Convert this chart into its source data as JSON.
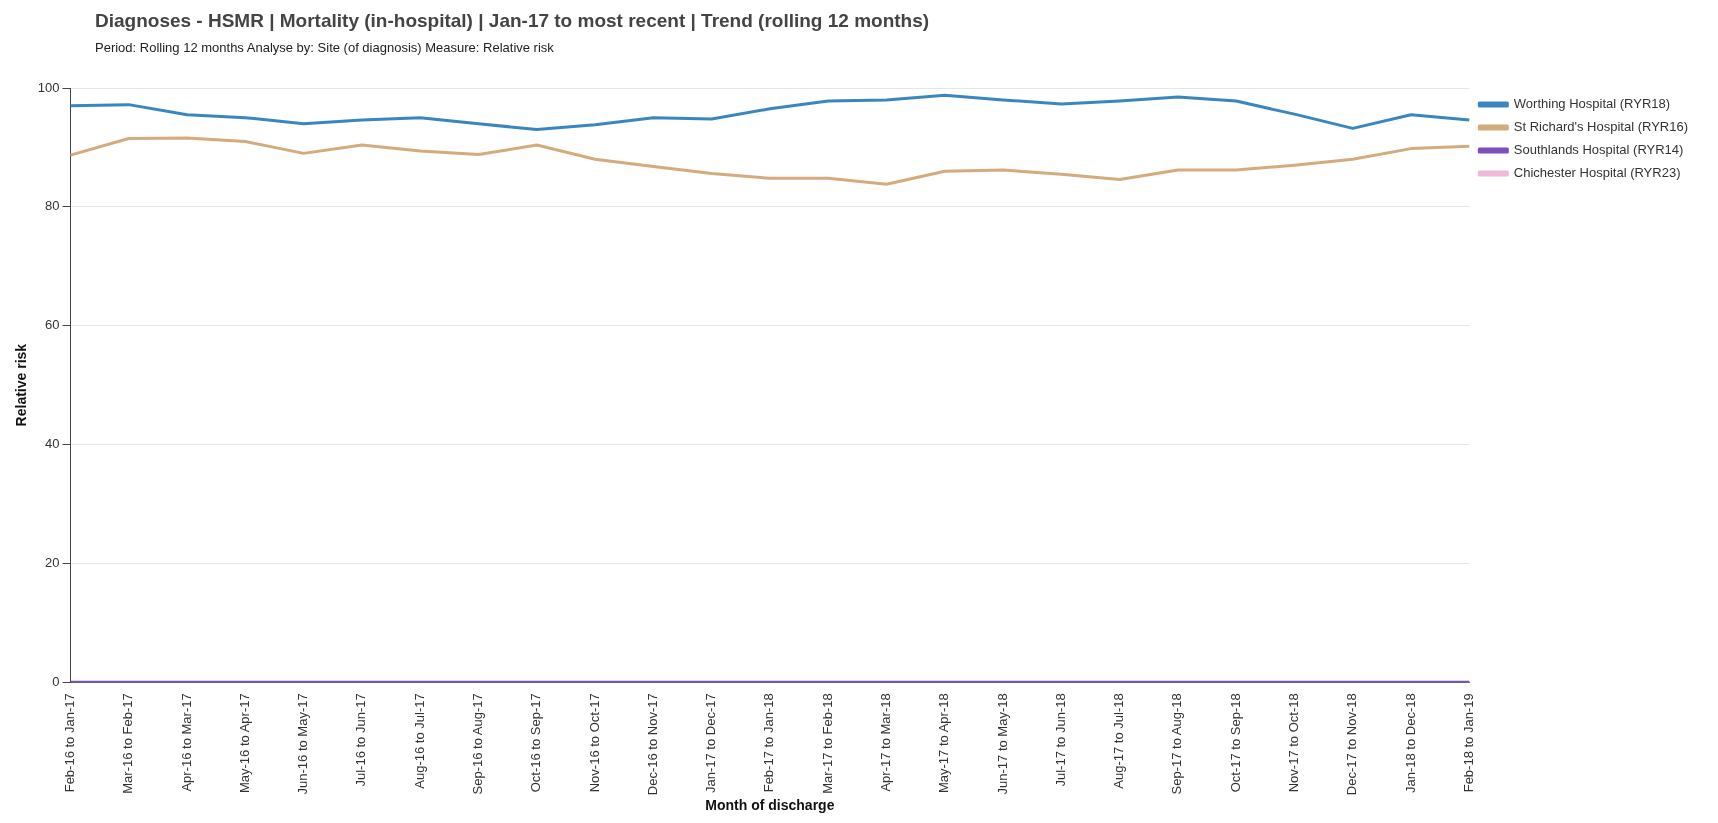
{
  "chart_data": {
    "type": "line",
    "title": "Diagnoses - HSMR | Mortality (in-hospital) | Jan-17 to most recent | Trend (rolling 12 months)",
    "subtitle": "Period: Rolling 12 months   Analyse by: Site (of diagnosis)   Measure: Relative risk",
    "xlabel": "Month of discharge",
    "ylabel": "Relative risk",
    "categories": [
      "Feb-16 to Jan-17",
      "Mar-16 to Feb-17",
      "Apr-16 to Mar-17",
      "May-16 to Apr-17",
      "Jun-16 to May-17",
      "Jul-16 to Jun-17",
      "Aug-16 to Jul-17",
      "Sep-16 to Aug-17",
      "Oct-16 to Sep-17",
      "Nov-16 to Oct-17",
      "Dec-16 to Nov-17",
      "Jan-17 to Dec-17",
      "Feb-17 to Jan-18",
      "Mar-17 to Feb-18",
      "Apr-17 to Mar-18",
      "May-17 to Apr-18",
      "Jun-17 to May-18",
      "Jul-17 to Jun-18",
      "Aug-17 to Jul-18",
      "Sep-17 to Aug-18",
      "Oct-17 to Sep-18",
      "Nov-17 to Oct-18",
      "Dec-17 to Nov-18",
      "Jan-18 to Dec-18",
      "Feb-18 to Jan-19"
    ],
    "series": [
      {
        "name": "Worthing Hospital (RYR18)",
        "color": "#3a87c0",
        "values": [
          97,
          97.2,
          95.5,
          95,
          94,
          94.6,
          95,
          94,
          93,
          93.8,
          95,
          94.8,
          96.5,
          97.8,
          98,
          98.8,
          98,
          97.3,
          97.8,
          98.5,
          97.8,
          95.6,
          93.2,
          95.5,
          94.6
        ]
      },
      {
        "name": "St Richard's Hospital (RYR16)",
        "color": "#d4ab7c",
        "values": [
          88.7,
          91.5,
          91.6,
          91,
          89,
          90.4,
          89.4,
          88.8,
          90.4,
          88,
          86.8,
          85.6,
          84.8,
          84.8,
          83.8,
          86,
          86.2,
          85.5,
          84.6,
          86.2,
          86.2,
          87,
          88,
          89.8,
          90.2
        ]
      },
      {
        "name": "Southlands Hospital (RYR14)",
        "color": "#7b4fbd",
        "values": [
          0,
          0,
          0,
          0,
          0,
          0,
          0,
          0,
          0,
          0,
          0,
          0,
          0,
          0,
          0,
          0,
          0,
          0,
          0,
          0,
          0,
          0,
          0,
          0,
          0
        ]
      },
      {
        "name": "Chichester Hospital (RYR23)",
        "color": "#f0b8d8",
        "values": [
          null,
          null,
          null,
          null,
          null,
          null,
          null,
          null,
          null,
          null,
          null,
          null,
          null,
          null,
          null,
          null,
          null,
          null,
          null,
          null,
          null,
          null,
          null,
          null,
          null
        ]
      }
    ],
    "ylim": [
      0,
      100
    ],
    "yticks": [
      0,
      20,
      40,
      60,
      80,
      100
    ],
    "grid": "y",
    "legend": "top right",
    "marker": "none",
    "line_style": "solid"
  }
}
